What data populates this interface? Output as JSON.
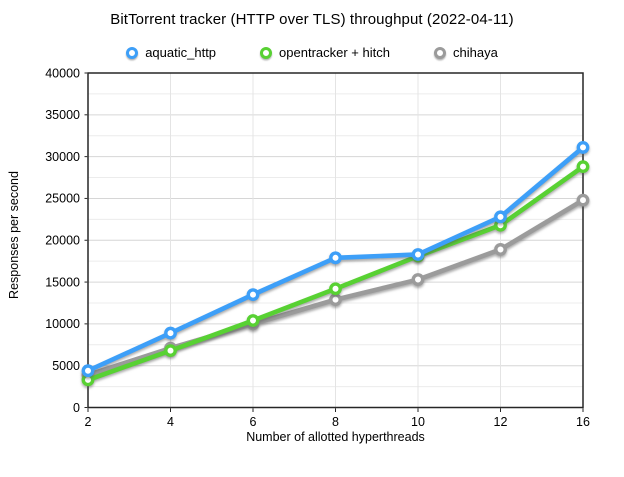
{
  "title": "BitTorrent tracker (HTTP over TLS) throughput (2022-04-11)",
  "chart_data": {
    "type": "line",
    "title": "BitTorrent tracker (HTTP over TLS) throughput (2022-04-11)",
    "xlabel": "Number of allotted hyperthreads",
    "ylabel": "Responses per second",
    "categories": [
      2,
      4,
      6,
      8,
      10,
      12,
      16
    ],
    "x_tick_labels": [
      "2",
      "4",
      "6",
      "8",
      "10",
      "12",
      "16"
    ],
    "y_tick_labels": [
      "0",
      "5000",
      "10000",
      "15000",
      "20000",
      "25000",
      "30000",
      "35000",
      "40000"
    ],
    "ylim": [
      0,
      40000
    ],
    "y_major_step": 5000,
    "y_minor_step": 2500,
    "grid": true,
    "legend_position": "top",
    "series": [
      {
        "name": "aquatic_http",
        "color": "#3D9FF8",
        "values": [
          4400,
          8900,
          13500,
          17900,
          18300,
          22800,
          31100
        ]
      },
      {
        "name": "opentracker + hitch",
        "color": "#58D133",
        "values": [
          3300,
          6800,
          10400,
          14200,
          18100,
          21800,
          28800
        ]
      },
      {
        "name": "chihaya",
        "color": "#9B9B9B",
        "values": [
          3900,
          7100,
          10000,
          12900,
          15300,
          18900,
          24800
        ]
      }
    ]
  },
  "style": {
    "frame_color": "#262626",
    "major_grid_color": "#d6d6d6",
    "minor_grid_color": "#ececec",
    "vertical_grid_color": "#e4e4e4",
    "marker_fill": "#ffffff"
  }
}
